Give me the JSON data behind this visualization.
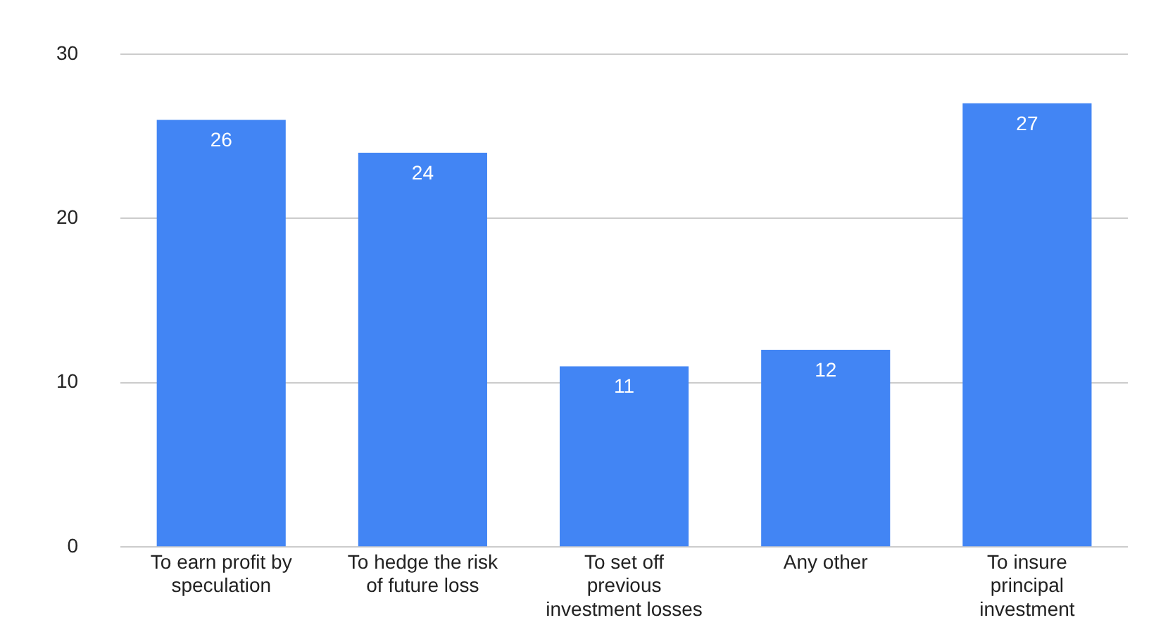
{
  "chart_data": {
    "type": "bar",
    "categories": [
      "To earn profit by speculation",
      "To hedge the risk of future loss",
      "To set off previous investment losses",
      "Any other",
      "To insure principal investment"
    ],
    "values": [
      26,
      24,
      11,
      12,
      27
    ],
    "color": "#4285f4",
    "ylim": [
      0,
      30
    ],
    "yticks": [
      0,
      10,
      20,
      30
    ],
    "grid": "y",
    "data_labels": true
  }
}
